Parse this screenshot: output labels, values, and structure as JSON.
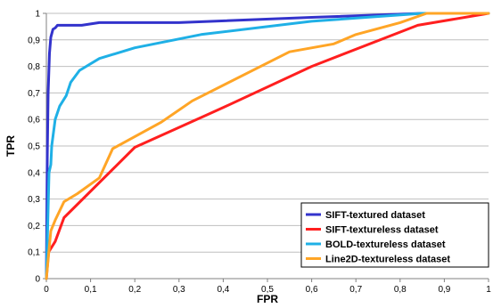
{
  "chart_data": {
    "type": "line",
    "title": "",
    "xlabel": "FPR",
    "ylabel": "TPR",
    "xlim": [
      0,
      1
    ],
    "ylim": [
      0,
      1
    ],
    "x_ticks": [
      "0",
      "0,1",
      "0,2",
      "0,3",
      "0,4",
      "0,5",
      "0,6",
      "0,7",
      "0,8",
      "0,9",
      "1"
    ],
    "y_ticks": [
      "0",
      "0,1",
      "0,2",
      "0,3",
      "0,4",
      "0,5",
      "0,6",
      "0,7",
      "0,8",
      "0,9",
      "1"
    ],
    "grid": "horizontal",
    "legend_position": "bottom-right",
    "series": [
      {
        "name": "SIFT-textured dataset",
        "color": "#3333cc",
        "points": [
          [
            0,
            0
          ],
          [
            0.002,
            0.45
          ],
          [
            0.004,
            0.7
          ],
          [
            0.007,
            0.85
          ],
          [
            0.01,
            0.91
          ],
          [
            0.015,
            0.94
          ],
          [
            0.02,
            0.945
          ],
          [
            0.025,
            0.955
          ],
          [
            0.08,
            0.955
          ],
          [
            0.12,
            0.965
          ],
          [
            0.3,
            0.965
          ],
          [
            0.6,
            0.985
          ],
          [
            0.85,
            1.0
          ],
          [
            1.0,
            1.0
          ]
        ]
      },
      {
        "name": "SIFT-textureless dataset",
        "color": "#ff1f1f",
        "points": [
          [
            0,
            0
          ],
          [
            0.005,
            0.1
          ],
          [
            0.02,
            0.14
          ],
          [
            0.04,
            0.23
          ],
          [
            0.2,
            0.495
          ],
          [
            0.4,
            0.645
          ],
          [
            0.6,
            0.8
          ],
          [
            0.84,
            0.955
          ],
          [
            1.0,
            1.0
          ]
        ]
      },
      {
        "name": "BOLD-textureless dataset",
        "color": "#1fb0e6",
        "points": [
          [
            0,
            0
          ],
          [
            0.003,
            0.2
          ],
          [
            0.006,
            0.4
          ],
          [
            0.01,
            0.43
          ],
          [
            0.012,
            0.5
          ],
          [
            0.02,
            0.6
          ],
          [
            0.03,
            0.65
          ],
          [
            0.045,
            0.69
          ],
          [
            0.055,
            0.74
          ],
          [
            0.075,
            0.785
          ],
          [
            0.12,
            0.83
          ],
          [
            0.2,
            0.87
          ],
          [
            0.35,
            0.92
          ],
          [
            0.6,
            0.97
          ],
          [
            0.85,
            1.0
          ],
          [
            1.0,
            1.0
          ]
        ]
      },
      {
        "name": "Line2D-textureless dataset",
        "color": "#ffa526",
        "points": [
          [
            0,
            0
          ],
          [
            0.01,
            0.18
          ],
          [
            0.02,
            0.22
          ],
          [
            0.04,
            0.29
          ],
          [
            0.07,
            0.32
          ],
          [
            0.12,
            0.38
          ],
          [
            0.15,
            0.49
          ],
          [
            0.26,
            0.59
          ],
          [
            0.33,
            0.67
          ],
          [
            0.55,
            0.855
          ],
          [
            0.65,
            0.885
          ],
          [
            0.7,
            0.92
          ],
          [
            0.8,
            0.965
          ],
          [
            0.86,
            1.0
          ],
          [
            1.0,
            1.0
          ]
        ]
      }
    ]
  }
}
